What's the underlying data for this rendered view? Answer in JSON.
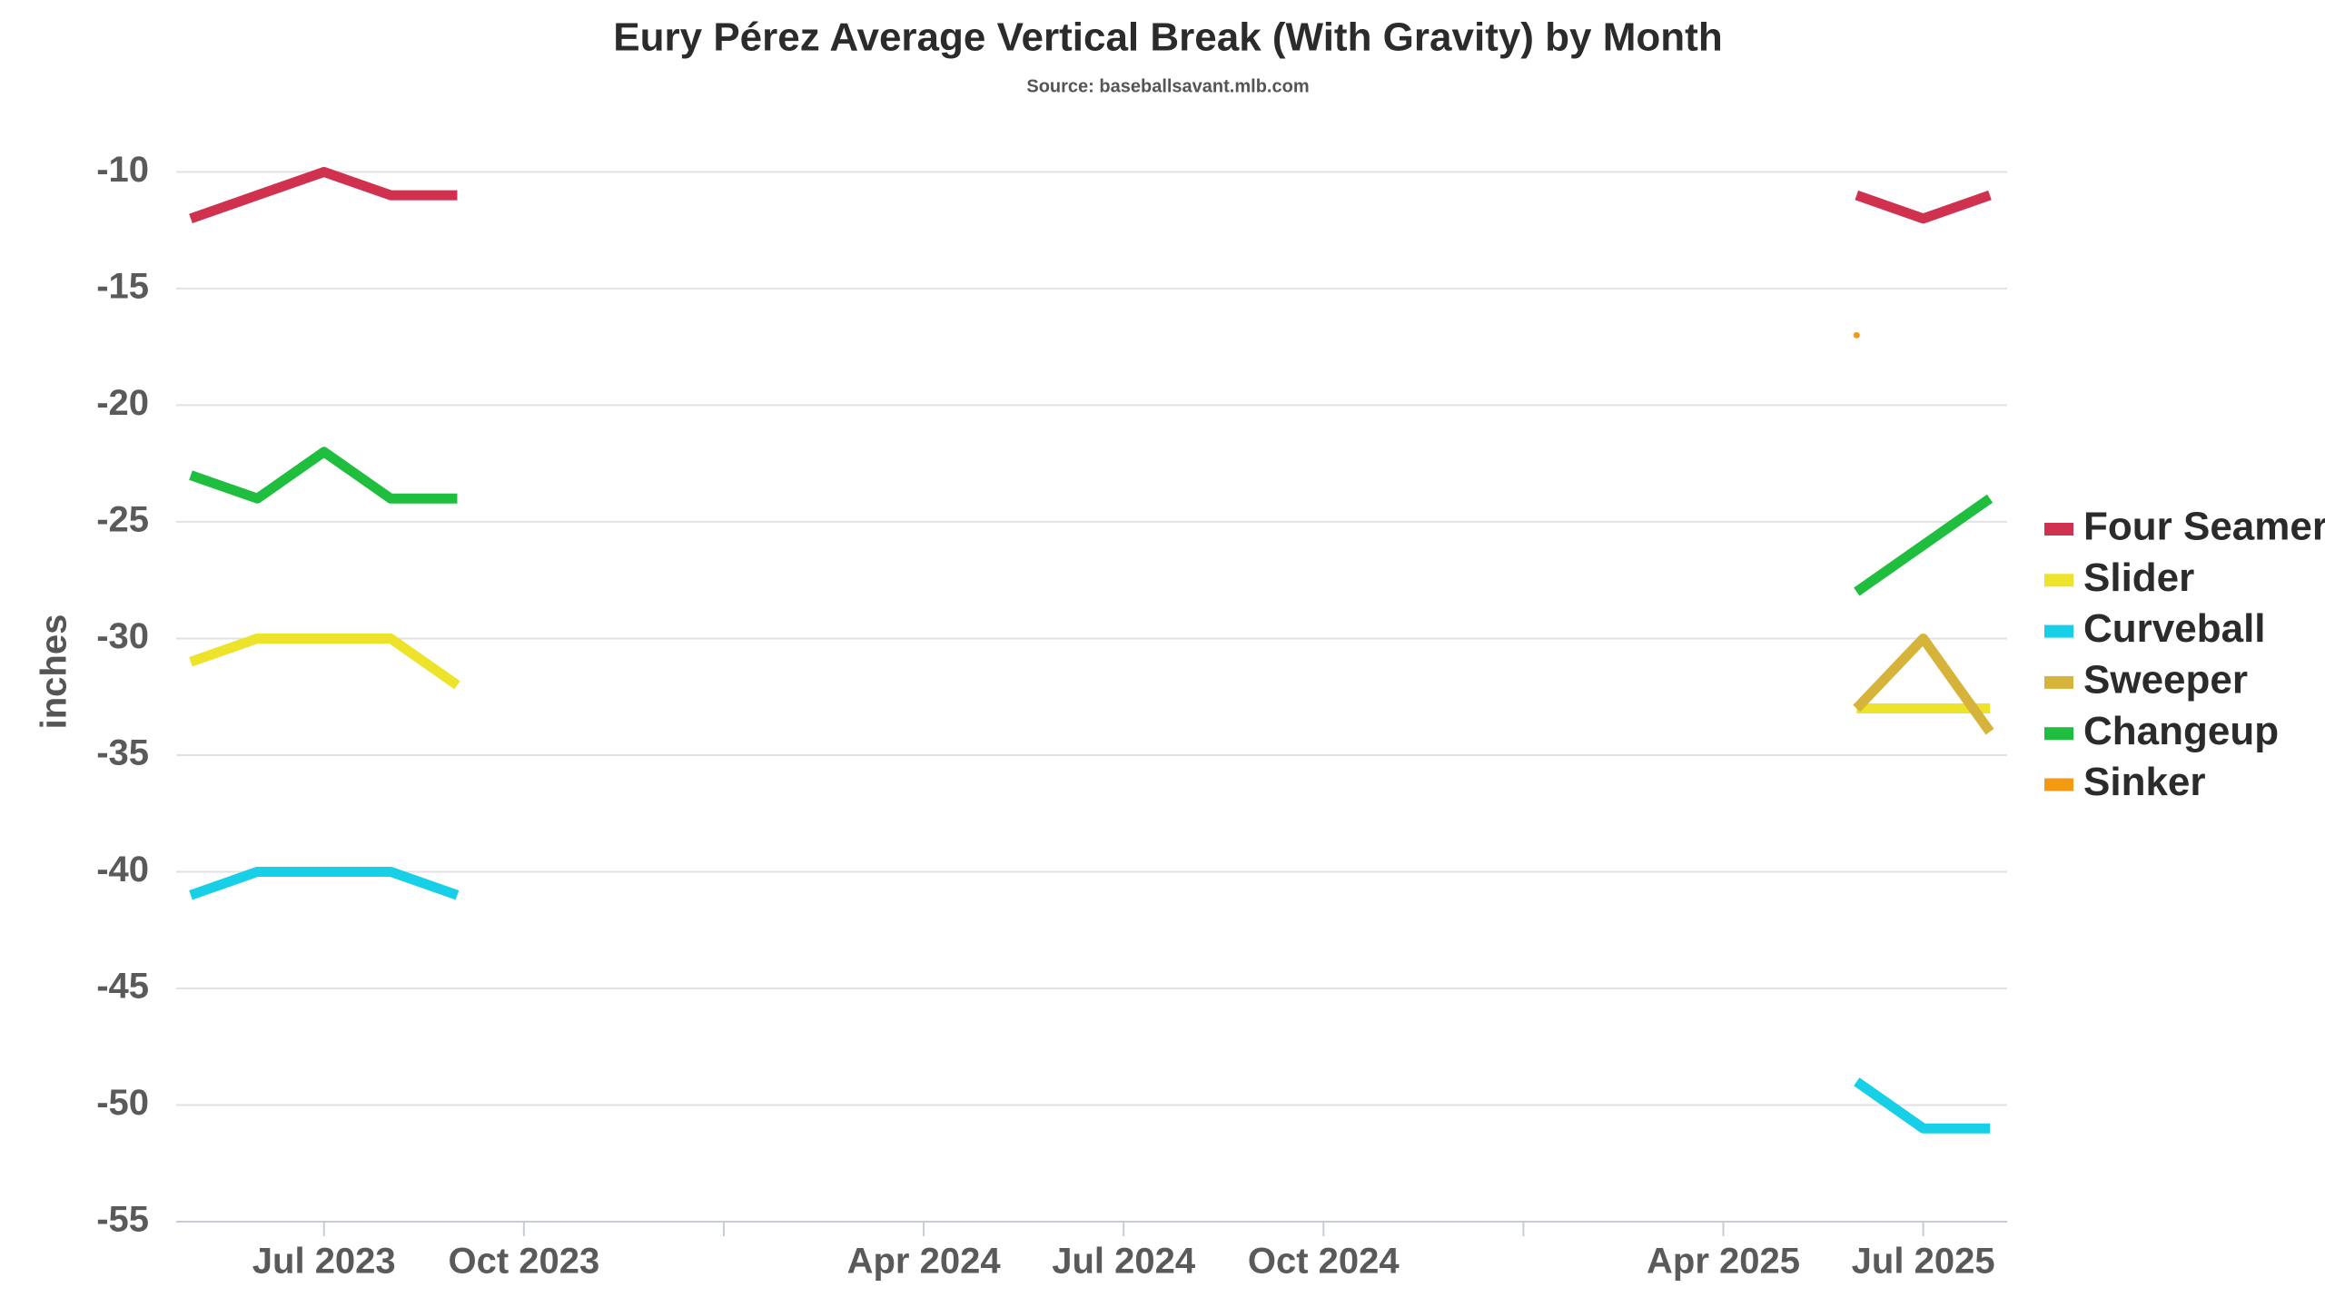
{
  "chart_data": {
    "type": "line",
    "title": "Eury Pérez Average Vertical Break (With Gravity) by Month",
    "subtitle": "Source: baseballsavant.mlb.com",
    "y_label": "inches",
    "x": [
      "2023-05",
      "2023-06",
      "2023-07",
      "2023-08",
      "2023-09",
      "2023-10",
      "2025-06",
      "2025-07",
      "2025-08"
    ],
    "xlim": [
      "2023-05",
      "2025-08"
    ],
    "xticks": [
      {
        "value": "2023-07",
        "label": "Jul 2023"
      },
      {
        "value": "2023-10",
        "label": "Oct 2023"
      },
      {
        "value": "2024-01",
        "label": null
      },
      {
        "value": "2024-04",
        "label": "Apr 2024"
      },
      {
        "value": "2024-07",
        "label": "Jul 2024"
      },
      {
        "value": "2024-10",
        "label": "Oct 2024"
      },
      {
        "value": "2025-01",
        "label": null
      },
      {
        "value": "2025-04",
        "label": "Apr 2025"
      },
      {
        "value": "2025-07",
        "label": "Jul 2025"
      }
    ],
    "ylim": [
      -55,
      -8
    ],
    "yticks": [
      -10,
      -15,
      -20,
      -25,
      -30,
      -35,
      -40,
      -45,
      -50,
      -55
    ],
    "grid": true,
    "legend": "right",
    "series": [
      {
        "name": "Four Seamer",
        "color": "#d0314f",
        "values": [
          -12,
          -11,
          -10,
          -11,
          -11,
          null,
          -11,
          -12,
          -11
        ]
      },
      {
        "name": "Slider",
        "color": "#ece32a",
        "values": [
          -31,
          -30,
          -30,
          -30,
          -32,
          null,
          -33,
          -33,
          -33
        ]
      },
      {
        "name": "Curveball",
        "color": "#17cfe6",
        "values": [
          -41,
          -40,
          -40,
          -40,
          -41,
          null,
          -49,
          -51,
          -51
        ]
      },
      {
        "name": "Sweeper",
        "color": "#d6b43b",
        "values": [
          null,
          null,
          null,
          null,
          null,
          null,
          -33,
          -30,
          -34
        ]
      },
      {
        "name": "Changeup",
        "color": "#1fbe3f",
        "values": [
          -23,
          -24,
          -22,
          -24,
          -24,
          null,
          -28,
          -26,
          -24
        ]
      },
      {
        "name": "Sinker",
        "color": "#f39a12",
        "values": [
          null,
          null,
          null,
          null,
          null,
          null,
          -17,
          null,
          null
        ]
      }
    ]
  }
}
